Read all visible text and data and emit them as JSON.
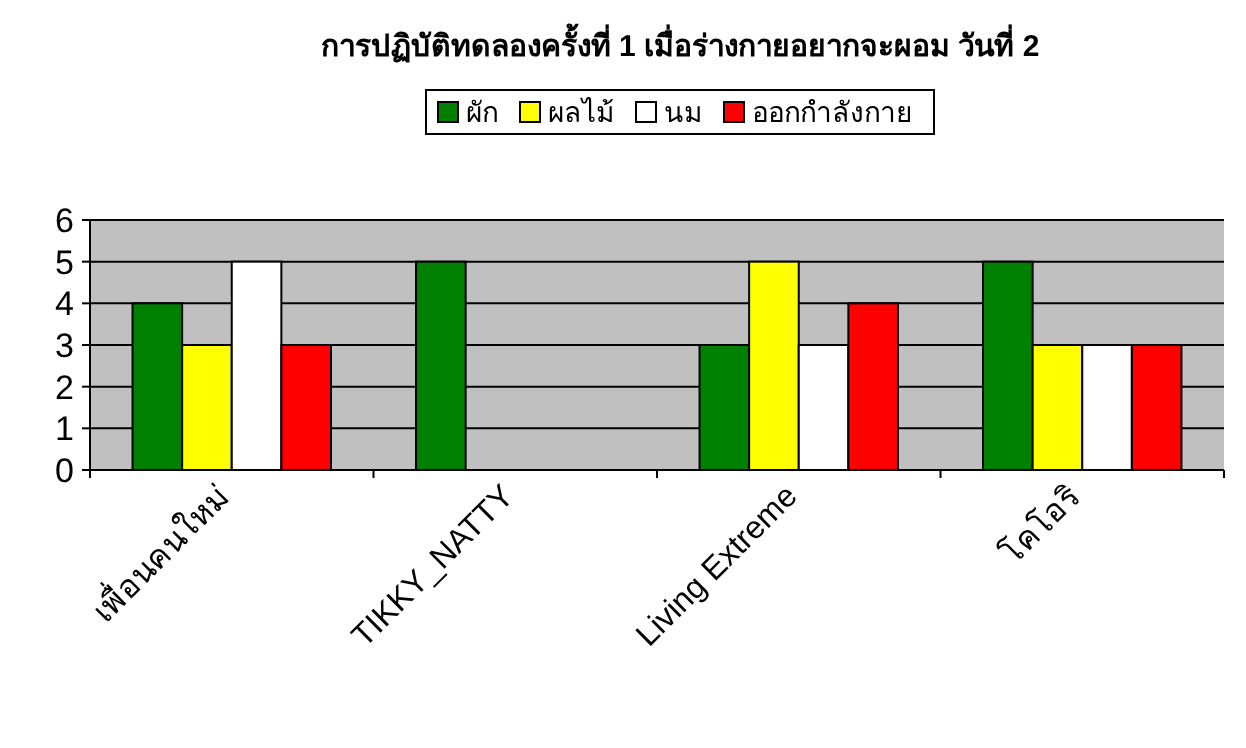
{
  "chart_data": {
    "type": "bar",
    "title": "การปฏิบัติทดลองครั้งที่ 1 เมื่อร่างกายอยากจะผอม วันที่ 2",
    "categories": [
      "เพื่อนคนใหม่",
      "TIKKY_NATTY",
      "Living Extreme",
      "โคโอริ"
    ],
    "series": [
      {
        "name": "ผัก",
        "color": "#008000",
        "values": [
          4,
          5,
          3,
          5
        ]
      },
      {
        "name": "ผลไม้",
        "color": "#ffff00",
        "values": [
          3,
          0,
          5,
          3
        ]
      },
      {
        "name": "นม",
        "color": "#ffffff",
        "values": [
          5,
          0,
          3,
          3
        ]
      },
      {
        "name": "ออกกำลังกาย",
        "color": "#ff0000",
        "values": [
          3,
          0,
          4,
          3
        ]
      }
    ],
    "ylim": [
      0,
      6
    ],
    "yticks": [
      0,
      1,
      2,
      3,
      4,
      5,
      6
    ],
    "grid": "y",
    "legend": "top"
  }
}
